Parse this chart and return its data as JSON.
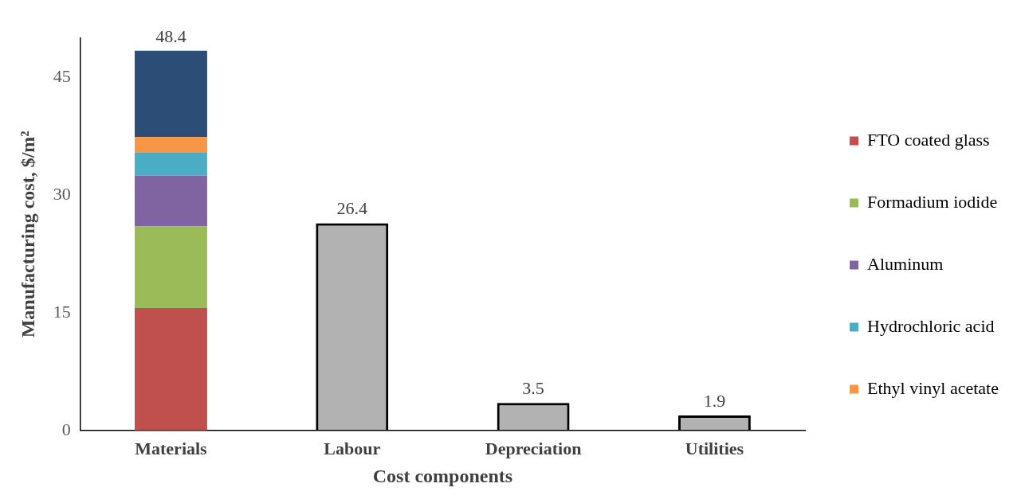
{
  "chart_data": {
    "type": "bar",
    "stacked": true,
    "xlabel": "Cost components",
    "ylabel": "Manufacturing cost, $/m²",
    "categories": [
      "Materials",
      "Labour",
      "Depreciation",
      "Utilities"
    ],
    "series": [
      {
        "name": "FTO coated glass",
        "color": "#c0504d",
        "values": [
          15.6,
          null,
          null,
          null
        ]
      },
      {
        "name": "Formadium iodide",
        "color": "#9bbb59",
        "values": [
          10.4,
          null,
          null,
          null
        ]
      },
      {
        "name": "Aluminum",
        "color": "#8064a2",
        "values": [
          6.5,
          null,
          null,
          null
        ]
      },
      {
        "name": "Hydrochloric acid",
        "color": "#4bacc6",
        "values": [
          2.9,
          null,
          null,
          null
        ]
      },
      {
        "name": "Ethyl vinyl acetate",
        "color": "#f79646",
        "values": [
          2.0,
          null,
          null,
          null
        ]
      },
      {
        "color": "#2c4d75",
        "values": [
          11.0,
          null,
          null,
          null
        ]
      },
      {
        "color": "#000000",
        "values": [
          null,
          26.4,
          3.5,
          1.9
        ]
      }
    ],
    "totals": [
      "48.4",
      "26.4",
      "3.5",
      "1.9"
    ],
    "ylim": [
      0,
      50
    ],
    "yticks": [
      0,
      15,
      30,
      45
    ],
    "grid": false,
    "legend": "right"
  }
}
